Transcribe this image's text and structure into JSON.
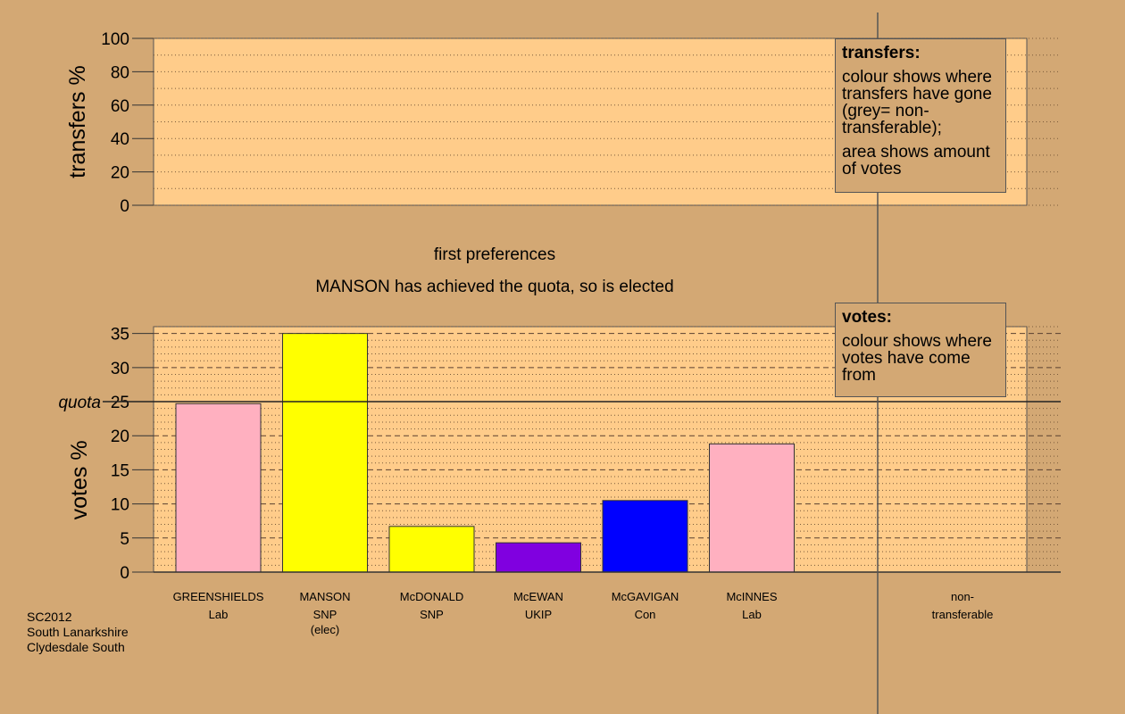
{
  "colors": {
    "background": "#d3a874",
    "plot_fill": "#ffcc8a",
    "Lab": "#ffb0c0",
    "SNP": "#ffff00",
    "UKIP": "#8000e0",
    "Con": "#0000ff"
  },
  "headings": {
    "stage": "first preferences",
    "status": "MANSON has achieved the quota, so is elected"
  },
  "legend_transfers": {
    "title": "transfers:",
    "line1": "colour shows where transfers have gone (grey= non-transferable);",
    "line2": "area shows amount of votes"
  },
  "legend_votes": {
    "title": "votes:",
    "line1": "colour shows where votes have come from"
  },
  "footer": {
    "line1": "SC2012",
    "line2": "South Lanarkshire",
    "line3": "Clydesdale South"
  },
  "chart_data": [
    {
      "type": "bar",
      "ylabel": "transfers %",
      "ylim": [
        0,
        100
      ],
      "yticks": [
        0,
        20,
        40,
        60,
        80,
        100
      ],
      "values": []
    },
    {
      "type": "bar",
      "ylabel": "votes %",
      "ylim": [
        0,
        36
      ],
      "yticks": [
        0,
        5,
        10,
        15,
        20,
        25,
        30,
        35
      ],
      "quota": 25,
      "quota_label": "quota",
      "categories": [
        {
          "name": "GREENSHIELDS",
          "party": "Lab",
          "note": ""
        },
        {
          "name": "MANSON",
          "party": "SNP",
          "note": "(elec)"
        },
        {
          "name": "McDONALD",
          "party": "SNP",
          "note": ""
        },
        {
          "name": "McEWAN",
          "party": "UKIP",
          "note": ""
        },
        {
          "name": "McGAVIGAN",
          "party": "Con",
          "note": ""
        },
        {
          "name": "McINNES",
          "party": "Lab",
          "note": ""
        }
      ],
      "values": [
        24.7,
        35.0,
        6.7,
        4.3,
        10.5,
        18.8
      ],
      "nontransferable_label": [
        "non-",
        "transferable"
      ]
    }
  ]
}
